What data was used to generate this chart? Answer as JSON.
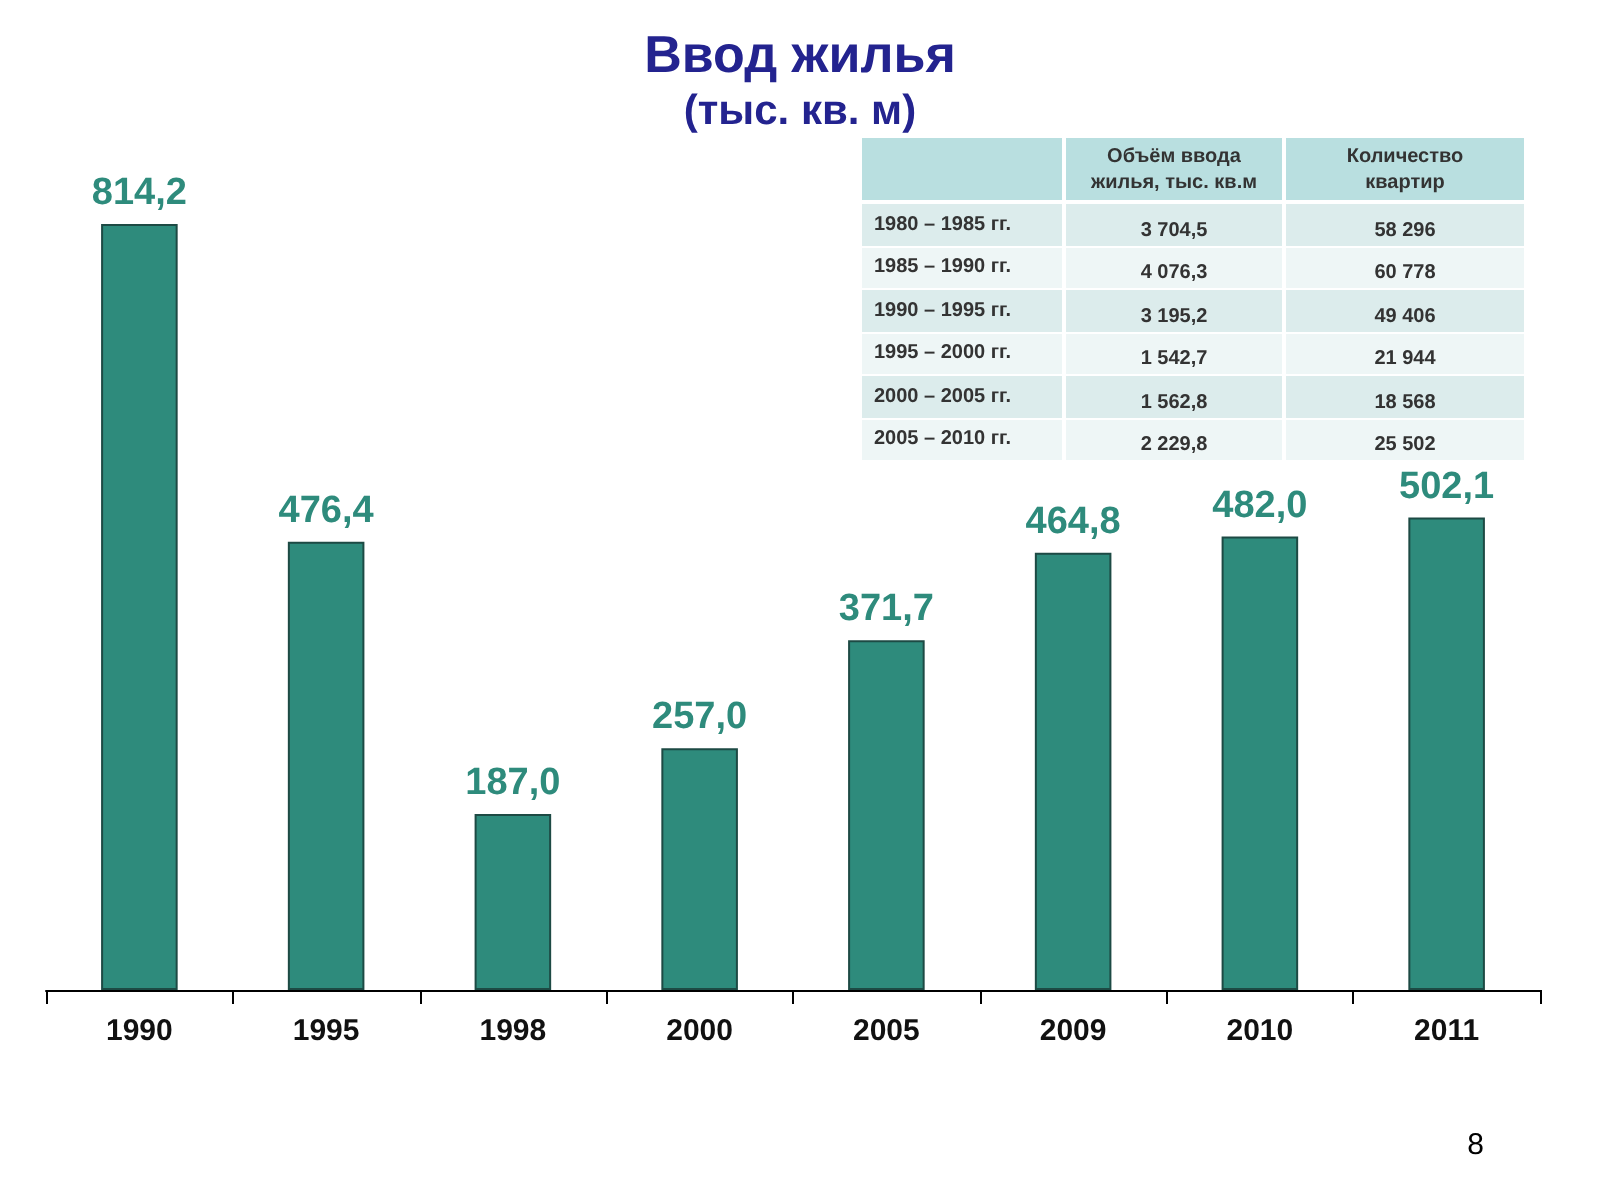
{
  "chart_data": [
    {
      "type": "bar",
      "title": "Ввод жилья",
      "subtitle": "(тыс. кв. м)",
      "categories": [
        "1990",
        "1995",
        "1998",
        "2000",
        "2005",
        "2009",
        "2010",
        "2011"
      ],
      "values": [
        814.2,
        476.4,
        187.0,
        257.0,
        371.7,
        464.8,
        482.0,
        502.1
      ],
      "value_labels": [
        "814,2",
        "476,4",
        "187,0",
        "257,0",
        "371,7",
        "464,8",
        "482,0",
        "502,1"
      ],
      "color": "#2e8b7c",
      "annotations": [
        "8"
      ]
    },
    {
      "type": "other",
      "categories": [
        "1980 – 1985 гг.",
        "1985 – 1990 гг.",
        "1990 – 1995 гг.",
        "1995 – 2000 гг.",
        "2000 – 2005 гг.",
        "2005 – 2010 гг."
      ],
      "series": [
        {
          "name": "Объём ввода жилья, тыс. кв.м",
          "values": [
            3704.5,
            4076.3,
            3195.2,
            1542.7,
            1562.8,
            2229.8
          ],
          "value_labels": [
            "3 704,5",
            "4 076,3",
            "3 195,2",
            "1 542,7",
            "1 562,8",
            "2 229,8"
          ],
          "colors": [
            "#dcecec",
            "#eef6f6",
            "#dcecec",
            "#eef6f6",
            "#dcecec",
            "#eef6f6"
          ]
        },
        {
          "name": "Количество квартир",
          "values": [
            58296,
            60778,
            49406,
            21944,
            18568,
            25502
          ],
          "value_labels": [
            "58 296",
            "60 778",
            "49 406",
            "21 944",
            "18 568",
            "25 502"
          ],
          "colors": [
            "#dcecec",
            "#eef6f6",
            "#dcecec",
            "#eef6f6",
            "#dcecec",
            "#eef6f6"
          ]
        }
      ]
    }
  ]
}
